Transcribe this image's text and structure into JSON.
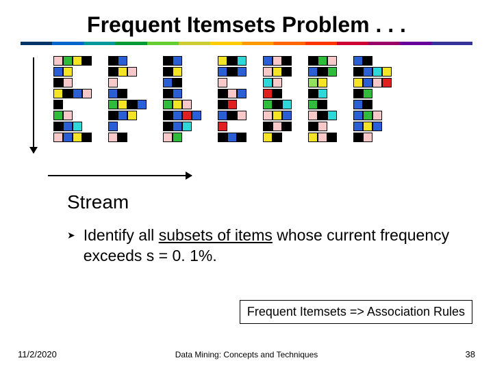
{
  "title": "Frequent Itemsets Problem . . .",
  "colors": {
    "P": "#f9c9c9",
    "G": "#2fbc3a",
    "Y": "#f5e326",
    "K": "#000000",
    "B": "#2a5fd6",
    "C": "#2fd8d8",
    "R": "#e02020",
    "L": "#8fe05a"
  },
  "cell_size": 14,
  "streams": [
    [
      [
        "P",
        "G",
        "Y",
        "K"
      ],
      [
        "B",
        "Y"
      ],
      [
        "K",
        "P"
      ],
      [
        "Y",
        "K",
        "B",
        "P"
      ],
      [
        "K"
      ],
      [
        "G",
        "P"
      ],
      [
        "K",
        "B",
        "C"
      ],
      [
        "P",
        "B",
        "Y",
        "K"
      ]
    ],
    [
      [
        "K",
        "B"
      ],
      [
        "K",
        "Y",
        "P"
      ],
      [
        "P"
      ],
      [
        "B",
        "K"
      ],
      [
        "G",
        "Y",
        "K",
        "B"
      ],
      [
        "K",
        "B",
        "Y"
      ],
      [
        "B"
      ],
      [
        "P",
        "K"
      ]
    ],
    [
      [
        "K",
        "B"
      ],
      [
        "K",
        "Y"
      ],
      [
        "B",
        "K"
      ],
      [
        "K",
        "B"
      ],
      [
        "G",
        "Y",
        "P"
      ],
      [
        "K",
        "B",
        "R",
        "B"
      ],
      [
        "K",
        "B",
        "C"
      ],
      [
        "P",
        "G"
      ]
    ],
    [
      [
        "Y",
        "K",
        "C"
      ],
      [
        "B",
        "K",
        "B"
      ],
      [
        "P"
      ],
      [
        "K",
        "P",
        "B"
      ],
      [
        "K",
        "R"
      ],
      [
        "B",
        "K",
        "P"
      ],
      [
        "R"
      ],
      [
        "K",
        "B",
        "K"
      ]
    ],
    [
      [
        "B",
        "P",
        "K"
      ],
      [
        "P",
        "Y",
        "K"
      ],
      [
        "C",
        "P"
      ],
      [
        "R",
        "K"
      ],
      [
        "G",
        "K",
        "C"
      ],
      [
        "P",
        "Y",
        "B"
      ],
      [
        "K",
        "P",
        "K"
      ],
      [
        "Y",
        "K"
      ]
    ],
    [
      [
        "K",
        "G",
        "P"
      ],
      [
        "B",
        "K",
        "G"
      ],
      [
        "L",
        "Y"
      ],
      [
        "K",
        "C"
      ],
      [
        "G",
        "K"
      ],
      [
        "P",
        "K",
        "C"
      ],
      [
        "K",
        "P"
      ],
      [
        "Y",
        "P",
        "K"
      ]
    ],
    [
      [
        "B",
        "K"
      ],
      [
        "K",
        "B",
        "C",
        "Y"
      ],
      [
        "Y",
        "B",
        "P",
        "R"
      ],
      [
        "K",
        "G"
      ],
      [
        "B",
        "K"
      ],
      [
        "B",
        "G",
        "P"
      ],
      [
        "B",
        "Y",
        "B"
      ],
      [
        "K",
        "P"
      ]
    ]
  ],
  "stream_label": "Stream",
  "bullet_marker": "➤",
  "bullet_pre": "Identify all ",
  "bullet_ul": "subsets of items",
  "bullet_post": " whose current frequency exceeds  s = 0. 1%.",
  "callout": "Frequent Itemsets => Association Rules",
  "footer_date": "11/2/2020",
  "footer_center": "Data Mining: Concepts and Techniques",
  "footer_page": "38"
}
